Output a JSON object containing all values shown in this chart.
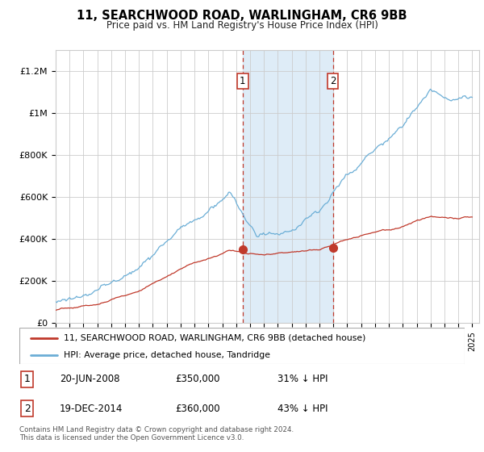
{
  "title": "11, SEARCHWOOD ROAD, WARLINGHAM, CR6 9BB",
  "subtitle": "Price paid vs. HM Land Registry's House Price Index (HPI)",
  "legend_line1": "11, SEARCHWOOD ROAD, WARLINGHAM, CR6 9BB (detached house)",
  "legend_line2": "HPI: Average price, detached house, Tandridge",
  "sale1_date": "20-JUN-2008",
  "sale1_price": 350000,
  "sale1_hpi_pct": "31% ↓ HPI",
  "sale2_date": "19-DEC-2014",
  "sale2_price": 360000,
  "sale2_hpi_pct": "43% ↓ HPI",
  "footer": "Contains HM Land Registry data © Crown copyright and database right 2024.\nThis data is licensed under the Open Government Licence v3.0.",
  "hpi_color": "#6baed6",
  "price_color": "#c0392b",
  "shade_color": "#d6e8f5",
  "vline_color": "#c0392b",
  "box_edge_color": "#c0392b",
  "ylim_max": 1300000,
  "ylim_min": 0,
  "sale1_year": 2008.47,
  "sale2_year": 2014.97,
  "background_color": "#ffffff",
  "grid_color": "#cccccc",
  "spine_color": "#cccccc"
}
